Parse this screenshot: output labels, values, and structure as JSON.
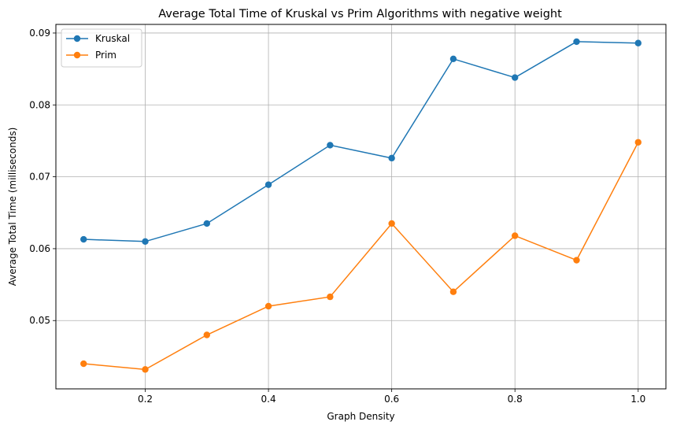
{
  "chart_data": {
    "type": "line",
    "title": "Average Total Time of Kruskal vs Prim Algorithms with negative weight",
    "xlabel": "Graph Density",
    "ylabel": "Average Total Time (milliseconds)",
    "x": [
      0.1,
      0.2,
      0.3,
      0.4,
      0.5,
      0.6,
      0.7,
      0.8,
      0.9,
      1.0
    ],
    "xlim": [
      0.055,
      1.045
    ],
    "ylim": [
      0.0405,
      0.0912
    ],
    "xticks": [
      0.2,
      0.4,
      0.6,
      0.8,
      1.0
    ],
    "xtick_labels": [
      "0.2",
      "0.4",
      "0.6",
      "0.8",
      "1.0"
    ],
    "yticks": [
      0.05,
      0.06,
      0.07,
      0.08,
      0.09
    ],
    "ytick_labels": [
      "0.05",
      "0.06",
      "0.07",
      "0.08",
      "0.09"
    ],
    "grid": true,
    "legend_position": "top-left",
    "series": [
      {
        "name": "Kruskal",
        "color": "#1f77b4",
        "values": [
          0.0613,
          0.061,
          0.0635,
          0.0689,
          0.0744,
          0.0726,
          0.0864,
          0.0838,
          0.0888,
          0.0886
        ]
      },
      {
        "name": "Prim",
        "color": "#ff7f0e",
        "values": [
          0.044,
          0.0432,
          0.048,
          0.052,
          0.0533,
          0.0635,
          0.054,
          0.0618,
          0.0584,
          0.0748
        ]
      }
    ]
  }
}
